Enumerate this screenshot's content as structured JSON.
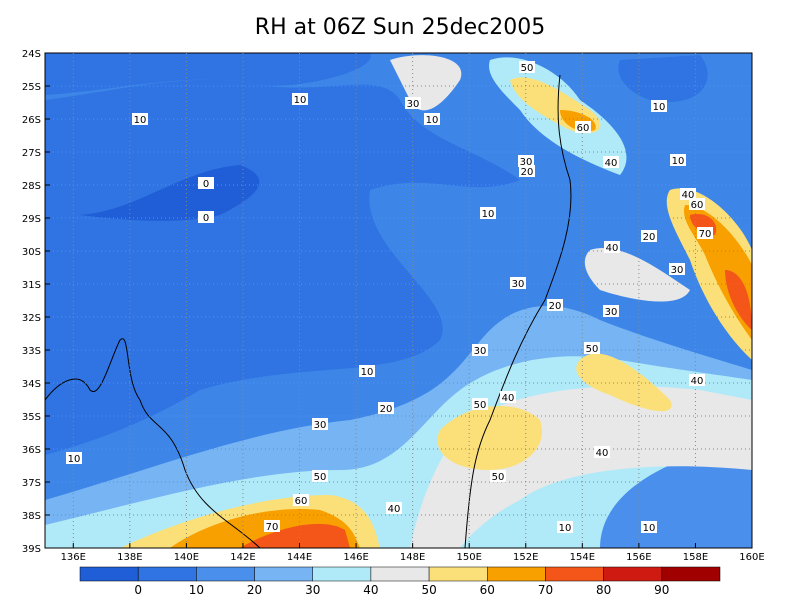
{
  "title": "RH at 06Z Sun 25dec2005",
  "map": {
    "xlim": [
      135,
      160
    ],
    "ylim": [
      -24,
      -39
    ],
    "xticks": [
      {
        "value": 136,
        "label": "136E"
      },
      {
        "value": 138,
        "label": "138E"
      },
      {
        "value": 140,
        "label": "140E"
      },
      {
        "value": 142,
        "label": "142E"
      },
      {
        "value": 144,
        "label": "144E"
      },
      {
        "value": 146,
        "label": "146E"
      },
      {
        "value": 148,
        "label": "148E"
      },
      {
        "value": 150,
        "label": "150E"
      },
      {
        "value": 152,
        "label": "152E"
      },
      {
        "value": 154,
        "label": "154E"
      },
      {
        "value": 156,
        "label": "156E"
      },
      {
        "value": 158,
        "label": "158E"
      },
      {
        "value": 160,
        "label": "160E"
      }
    ],
    "yticks": [
      {
        "value": -24,
        "label": "24S"
      },
      {
        "value": -25,
        "label": "25S"
      },
      {
        "value": -26,
        "label": "26S"
      },
      {
        "value": -27,
        "label": "27S"
      },
      {
        "value": -28,
        "label": "28S"
      },
      {
        "value": -29,
        "label": "29S"
      },
      {
        "value": -30,
        "label": "30S"
      },
      {
        "value": -31,
        "label": "31S"
      },
      {
        "value": -32,
        "label": "32S"
      },
      {
        "value": -33,
        "label": "33S"
      },
      {
        "value": -34,
        "label": "34S"
      },
      {
        "value": -35,
        "label": "35S"
      },
      {
        "value": -36,
        "label": "36S"
      },
      {
        "value": -37,
        "label": "37S"
      },
      {
        "value": -38,
        "label": "38S"
      },
      {
        "value": -39,
        "label": "39S"
      }
    ],
    "grid": true,
    "contour_labels": [
      10,
      10,
      0,
      0,
      30,
      10,
      50,
      60,
      10,
      40,
      10,
      30,
      20,
      10,
      40,
      60,
      70,
      20,
      40,
      30,
      30,
      20,
      30,
      30,
      50,
      10,
      40,
      20,
      40,
      50,
      30,
      40,
      10,
      50,
      50,
      60,
      40,
      70,
      10,
      10
    ]
  },
  "colorbar": {
    "levels": [
      0,
      10,
      20,
      30,
      40,
      50,
      60,
      70,
      80,
      90
    ],
    "colors": [
      "#1f5ed6",
      "#2f74e2",
      "#4a8fec",
      "#76b4f4",
      "#b0eaf8",
      "#e8e8e8",
      "#fbe07a",
      "#f8a000",
      "#f4561a",
      "#cf1a12",
      "#a00000"
    ]
  }
}
